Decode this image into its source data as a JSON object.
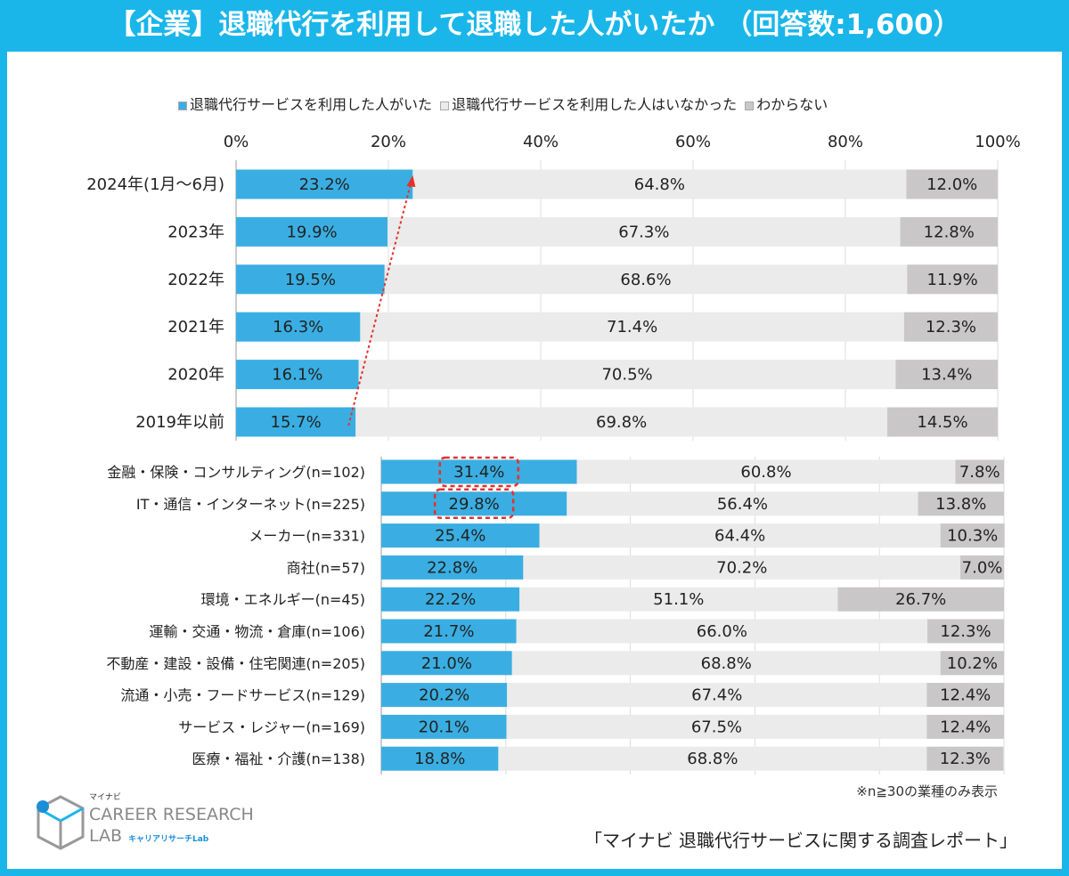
{
  "title": "【企業】退職代行を利用して退職した人がいたか （回答数:1,600）",
  "colors": {
    "used": "#3aaee2",
    "not_used": "#ebebeb",
    "unknown": "#c9c7c7",
    "frame": "#1ab6ea",
    "highlight": "#e8302a"
  },
  "chart_data": [
    {
      "type": "bar",
      "orientation": "horizontal",
      "stacked": true,
      "xlim": [
        0,
        100
      ],
      "xticks": [
        "0%",
        "20%",
        "40%",
        "60%",
        "80%",
        "100%"
      ],
      "legend_position": "top",
      "categories": [
        "2024年(1月～6月)",
        "2023年",
        "2022年",
        "2021年",
        "2020年",
        "2019年以前"
      ],
      "series": [
        {
          "name": "退職代行サービスを利用した人がいた",
          "values": [
            23.2,
            19.9,
            19.5,
            16.3,
            16.1,
            15.7
          ],
          "labels": [
            "23.2%",
            "19.9%",
            "19.5%",
            "16.3%",
            "16.1%",
            "15.7%"
          ]
        },
        {
          "name": "退職代行サービスを利用した人はいなかった",
          "values": [
            64.8,
            67.3,
            68.6,
            71.4,
            70.5,
            69.8
          ],
          "labels": [
            "64.8%",
            "67.3%",
            "68.6%",
            "71.4%",
            "70.5%",
            "69.8%"
          ]
        },
        {
          "name": "わからない",
          "values": [
            12.0,
            12.8,
            11.9,
            12.3,
            13.4,
            14.5
          ],
          "labels": [
            "12.0%",
            "12.8%",
            "11.9%",
            "12.3%",
            "13.4%",
            "14.5%"
          ]
        }
      ],
      "annotations": [
        "trend arrow from 2019年以前 to 2024年(1月～6月)"
      ]
    },
    {
      "type": "bar",
      "orientation": "horizontal",
      "stacked": true,
      "xlim": [
        0,
        100
      ],
      "categories": [
        "金融・保険・コンサルティング(n=102)",
        "IT・通信・インターネット(n=225)",
        "メーカー(n=331)",
        "商社(n=57)",
        "環境・エネルギー(n=45)",
        "運輸・交通・物流・倉庫(n=106)",
        "不動産・建設・設備・住宅関連(n=205)",
        "流通・小売・フードサービス(n=129)",
        "サービス・レジャー(n=169)",
        "医療・福祉・介護(n=138)"
      ],
      "series": [
        {
          "name": "退職代行サービスを利用した人がいた",
          "values": [
            31.4,
            29.8,
            25.4,
            22.8,
            22.2,
            21.7,
            21.0,
            20.2,
            20.1,
            18.8
          ],
          "labels": [
            "31.4%",
            "29.8%",
            "25.4%",
            "22.8%",
            "22.2%",
            "21.7%",
            "21.0%",
            "20.2%",
            "20.1%",
            "18.8%"
          ]
        },
        {
          "name": "退職代行サービスを利用した人はいなかった",
          "values": [
            60.8,
            56.4,
            64.4,
            70.2,
            51.1,
            66.0,
            68.8,
            67.4,
            67.5,
            68.8
          ],
          "labels": [
            "60.8%",
            "56.4%",
            "64.4%",
            "70.2%",
            "51.1%",
            "66.0%",
            "68.8%",
            "67.4%",
            "67.5%",
            "68.8%"
          ]
        },
        {
          "name": "わからない",
          "values": [
            7.8,
            13.8,
            10.3,
            7.0,
            26.7,
            12.3,
            10.2,
            12.4,
            12.4,
            12.3
          ],
          "labels": [
            "7.8%",
            "13.8%",
            "10.3%",
            "7.0%",
            "26.7%",
            "12.3%",
            "10.2%",
            "12.4%",
            "12.4%",
            "12.3%"
          ]
        }
      ],
      "highlighted": [
        "31.4%",
        "29.8%"
      ]
    }
  ],
  "note": "※n≧30の業種のみ表示",
  "source": "「マイナビ 退職代行サービスに関する調査レポート」",
  "logo": {
    "brand_small": "マイナビ",
    "line1": "CAREER RESEARCH",
    "line2": "LAB",
    "sub": "キャリアリサーチLab"
  }
}
